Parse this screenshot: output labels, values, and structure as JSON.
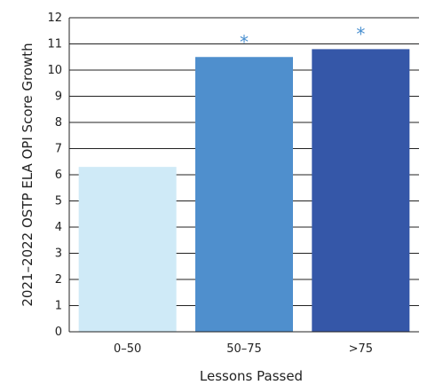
{
  "chart_data": {
    "type": "bar",
    "title": "",
    "xlabel": "Lessons Passed",
    "ylabel": "2021–2022 OSTP ELA OPI Score Growth",
    "categories": [
      "0–50",
      "50–75",
      ">75"
    ],
    "values": [
      6.3,
      10.5,
      10.8
    ],
    "bar_colors": [
      "#cfeaf7",
      "#4f8fcd",
      "#3557a8"
    ],
    "annotations": [
      "",
      "*",
      "*"
    ],
    "annotation_color": "#4a90d0",
    "ylim": [
      0,
      12
    ],
    "yticks": [
      0,
      1,
      2,
      3,
      4,
      5,
      6,
      7,
      8,
      9,
      10,
      11,
      12
    ],
    "grid": "horizontal",
    "legend": "none"
  }
}
